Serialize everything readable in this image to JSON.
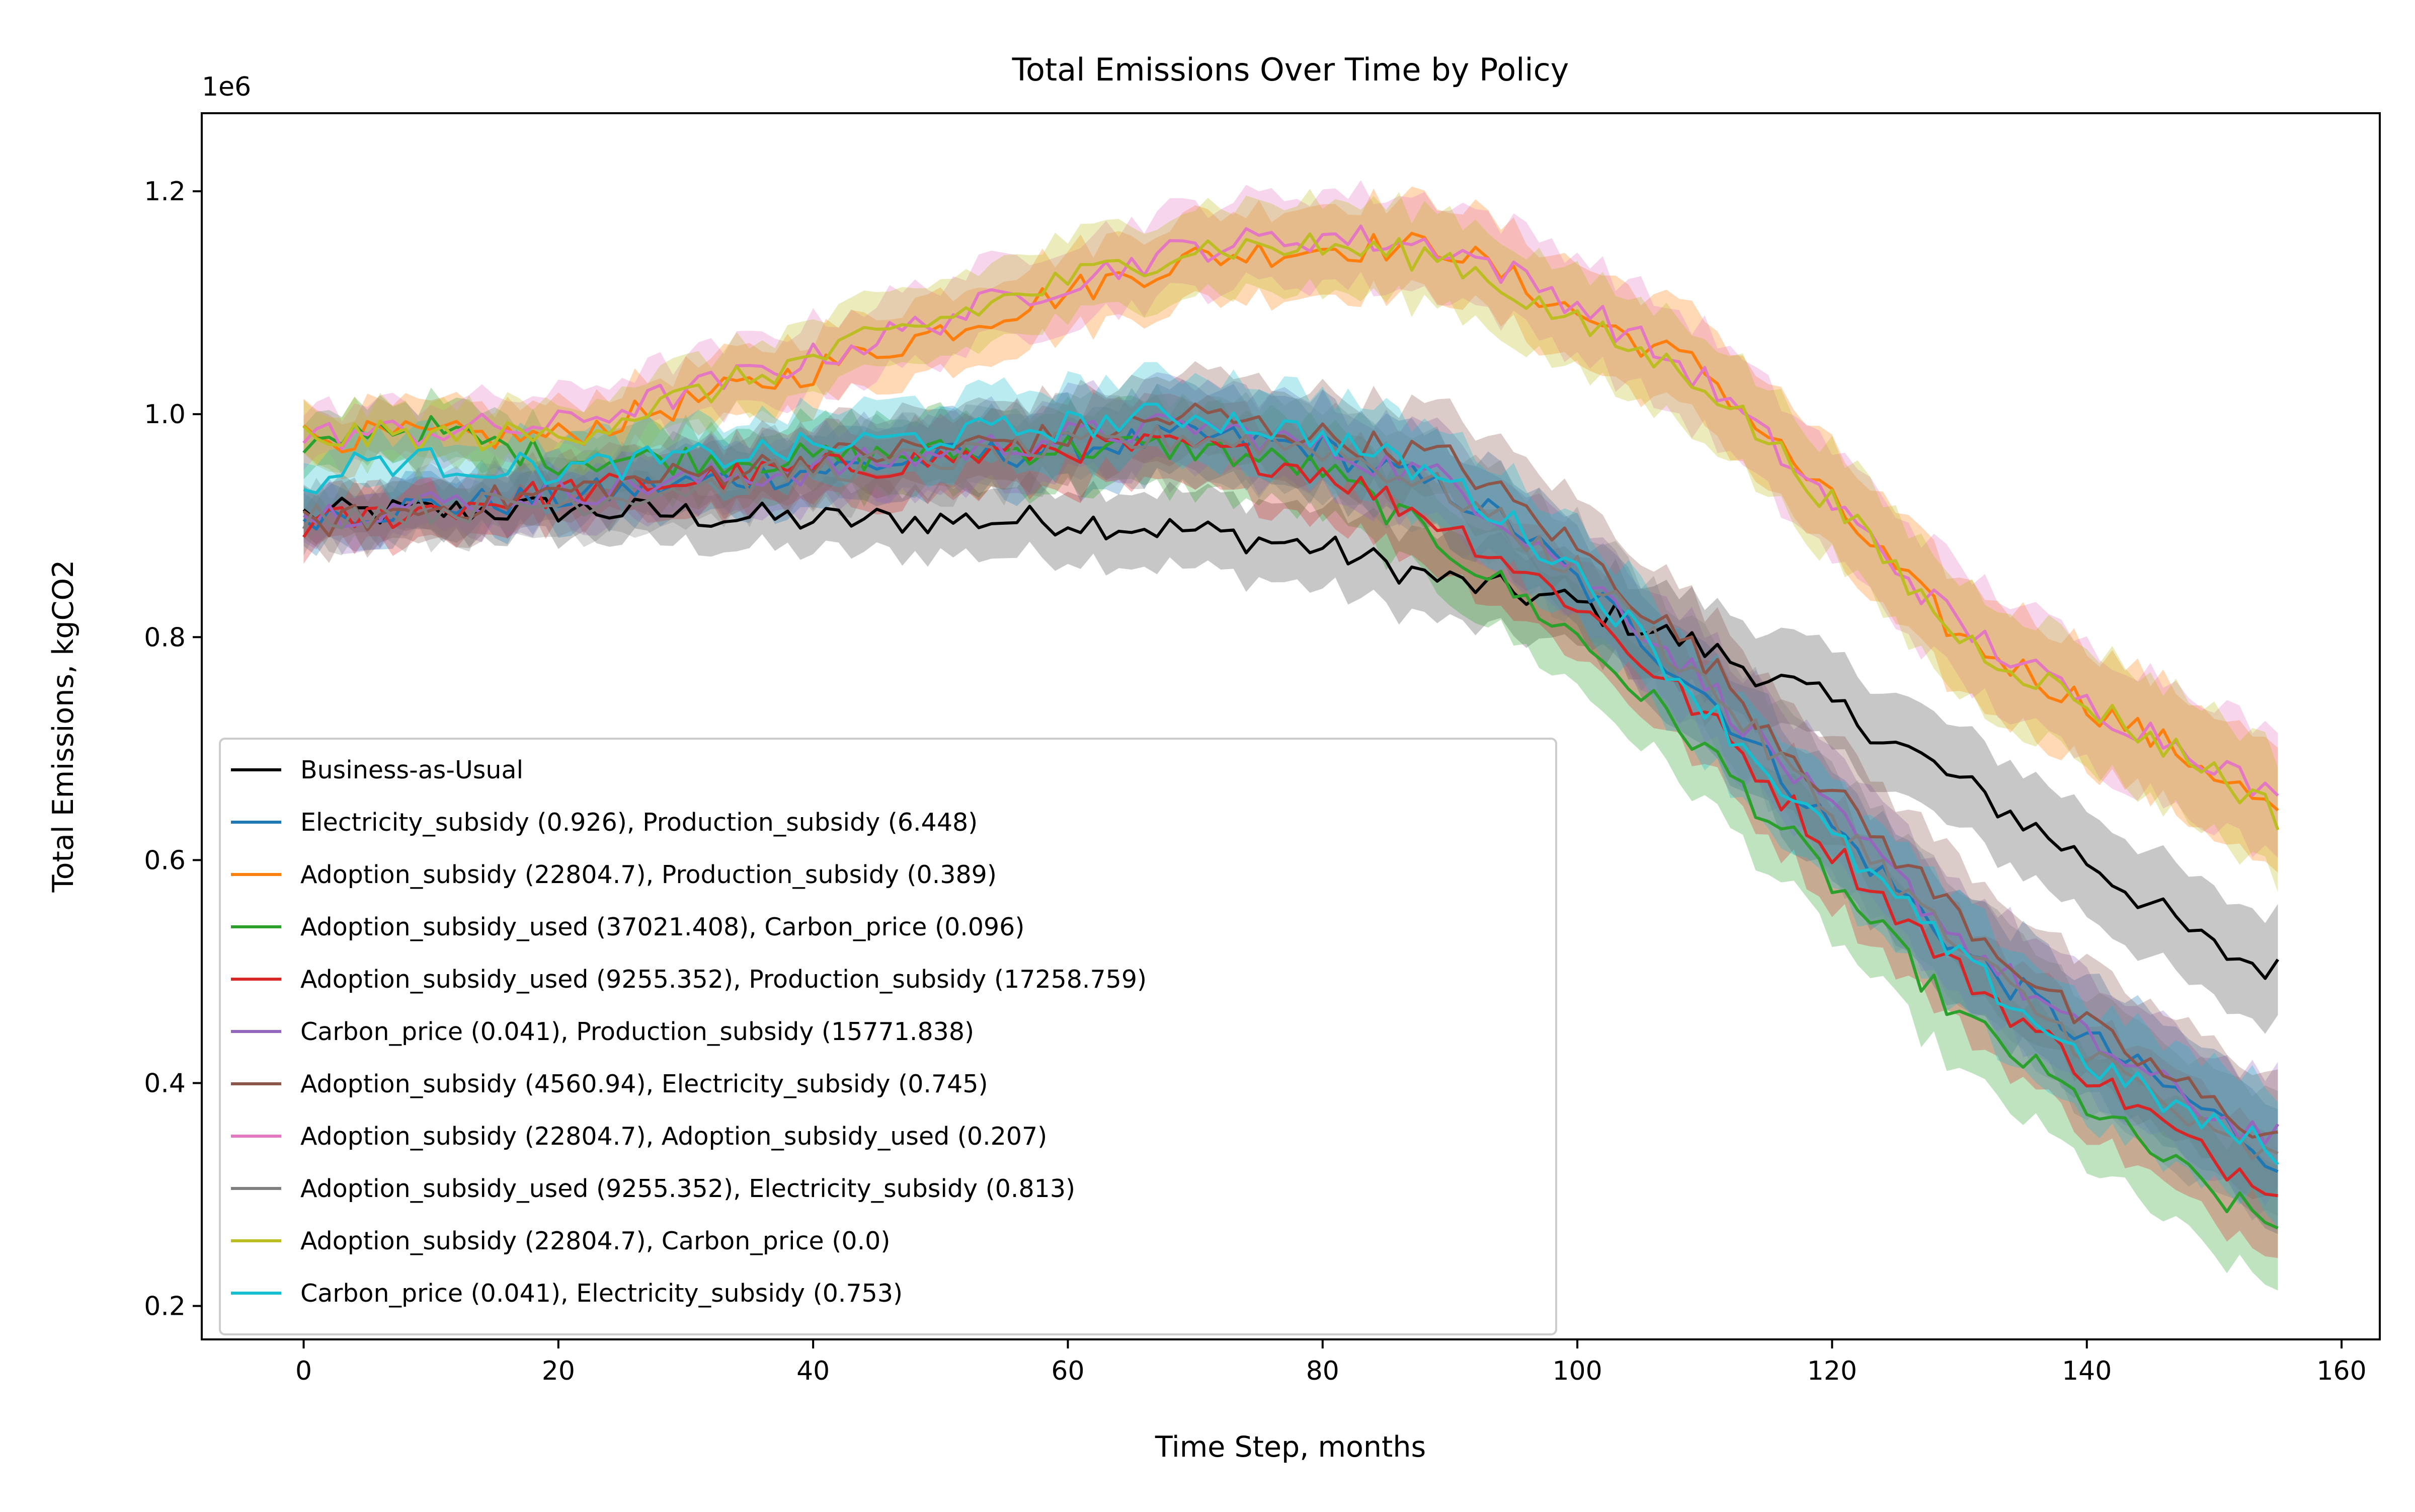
{
  "chart_data": {
    "type": "line",
    "title": "Total Emissions Over Time by Policy",
    "xlabel": "Time Step, months",
    "ylabel": "Total Emissions, kgCO2",
    "y_offset_text": "1e6",
    "xlim": [
      -8,
      163
    ],
    "ylim": [
      0.17,
      1.27
    ],
    "x_ticks": [
      0,
      20,
      40,
      60,
      80,
      100,
      120,
      140,
      160
    ],
    "x_tick_labels": [
      "0",
      "20",
      "40",
      "60",
      "80",
      "100",
      "120",
      "140",
      "160"
    ],
    "y_ticks": [
      0.2,
      0.4,
      0.6,
      0.8,
      1.0,
      1.2
    ],
    "y_tick_labels": [
      "0.2",
      "0.4",
      "0.6",
      "0.8",
      "1.0",
      "1.2"
    ],
    "grid": false,
    "legend_position": "lower-left",
    "x_range": [
      0,
      155
    ],
    "series": [
      {
        "name": "Business-as-Usual",
        "color": "#000000",
        "x": [
          0,
          20,
          40,
          60,
          70,
          80,
          90,
          100,
          110,
          120,
          130,
          140,
          150,
          155
        ],
        "y": [
          0.91,
          0.915,
          0.905,
          0.905,
          0.895,
          0.88,
          0.85,
          0.83,
          0.79,
          0.74,
          0.67,
          0.6,
          0.52,
          0.5
        ]
      },
      {
        "name": "Electricity_subsidy (0.926), Production_subsidy (6.448)",
        "color": "#1f77b4",
        "x": [
          0,
          20,
          40,
          60,
          70,
          80,
          90,
          95,
          100,
          110,
          120,
          130,
          140,
          150,
          155
        ],
        "y": [
          0.91,
          0.925,
          0.95,
          0.97,
          0.98,
          0.97,
          0.93,
          0.9,
          0.85,
          0.75,
          0.63,
          0.52,
          0.44,
          0.37,
          0.33
        ]
      },
      {
        "name": "Adoption_subsidy (22804.7), Production_subsidy (0.389)",
        "color": "#ff7f0e",
        "x": [
          0,
          20,
          40,
          60,
          70,
          80,
          90,
          100,
          110,
          120,
          130,
          140,
          150,
          155
        ],
        "y": [
          0.98,
          0.98,
          1.04,
          1.11,
          1.14,
          1.15,
          1.15,
          1.09,
          1.04,
          0.92,
          0.8,
          0.74,
          0.68,
          0.64
        ]
      },
      {
        "name": "Adoption_subsidy_used (37021.408), Carbon_price (0.096)",
        "color": "#2ca02c",
        "x": [
          0,
          5,
          10,
          20,
          40,
          60,
          70,
          80,
          90,
          100,
          110,
          120,
          130,
          140,
          150,
          155
        ],
        "y": [
          0.96,
          0.99,
          0.985,
          0.96,
          0.96,
          0.97,
          0.97,
          0.95,
          0.88,
          0.8,
          0.7,
          0.58,
          0.46,
          0.38,
          0.3,
          0.27
        ]
      },
      {
        "name": "Adoption_subsidy_used (9255.352), Production_subsidy (17258.759)",
        "color": "#d62728",
        "x": [
          0,
          20,
          40,
          60,
          70,
          80,
          90,
          100,
          110,
          120,
          130,
          140,
          150,
          155
        ],
        "y": [
          0.9,
          0.93,
          0.95,
          0.97,
          0.97,
          0.95,
          0.9,
          0.83,
          0.73,
          0.61,
          0.5,
          0.41,
          0.33,
          0.31
        ]
      },
      {
        "name": "Carbon_price (0.041), Production_subsidy (15771.838)",
        "color": "#9467bd",
        "x": [
          0,
          20,
          40,
          60,
          70,
          80,
          90,
          100,
          110,
          120,
          130,
          140,
          150,
          155
        ],
        "y": [
          0.91,
          0.93,
          0.95,
          0.98,
          0.99,
          0.97,
          0.94,
          0.86,
          0.76,
          0.64,
          0.53,
          0.44,
          0.37,
          0.35
        ]
      },
      {
        "name": "Adoption_subsidy (4560.94), Electricity_subsidy (0.745)",
        "color": "#8c564b",
        "x": [
          0,
          20,
          40,
          60,
          70,
          80,
          90,
          100,
          110,
          120,
          130,
          140,
          150,
          155
        ],
        "y": [
          0.9,
          0.93,
          0.96,
          0.98,
          1.0,
          0.98,
          0.96,
          0.88,
          0.78,
          0.66,
          0.55,
          0.45,
          0.38,
          0.35
        ]
      },
      {
        "name": "Adoption_subsidy (22804.7), Adoption_subsidy_used (0.207)",
        "color": "#e377c2",
        "x": [
          0,
          20,
          40,
          60,
          70,
          80,
          90,
          100,
          110,
          120,
          130,
          140,
          150,
          155
        ],
        "y": [
          0.98,
          0.99,
          1.05,
          1.12,
          1.15,
          1.16,
          1.15,
          1.1,
          1.03,
          0.92,
          0.81,
          0.74,
          0.69,
          0.65
        ]
      },
      {
        "name": "Adoption_subsidy_used (9255.352), Electricity_subsidy (0.813)",
        "color": "#7f7f7f",
        "x": [
          0,
          20,
          40,
          60,
          70,
          80,
          90,
          100,
          110,
          120,
          130,
          140,
          150,
          155
        ],
        "y": [
          0.91,
          0.92,
          0.95,
          0.97,
          0.98,
          0.97,
          0.93,
          0.86,
          0.76,
          0.64,
          0.52,
          0.43,
          0.35,
          0.33
        ]
      },
      {
        "name": "Adoption_subsidy (22804.7), Carbon_price (0.0)",
        "color": "#bcbd22",
        "x": [
          0,
          20,
          40,
          60,
          70,
          80,
          90,
          100,
          110,
          120,
          130,
          140,
          150,
          155
        ],
        "y": [
          0.98,
          0.98,
          1.05,
          1.12,
          1.15,
          1.15,
          1.14,
          1.08,
          1.03,
          0.92,
          0.8,
          0.74,
          0.68,
          0.64
        ]
      },
      {
        "name": "Carbon_price (0.041), Electricity_subsidy (0.753)",
        "color": "#17becf",
        "x": [
          0,
          5,
          20,
          40,
          60,
          70,
          80,
          90,
          100,
          110,
          120,
          130,
          140,
          150,
          155
        ],
        "y": [
          0.93,
          0.96,
          0.95,
          0.97,
          0.99,
          1.0,
          0.98,
          0.94,
          0.86,
          0.74,
          0.62,
          0.51,
          0.42,
          0.36,
          0.34
        ]
      }
    ]
  }
}
